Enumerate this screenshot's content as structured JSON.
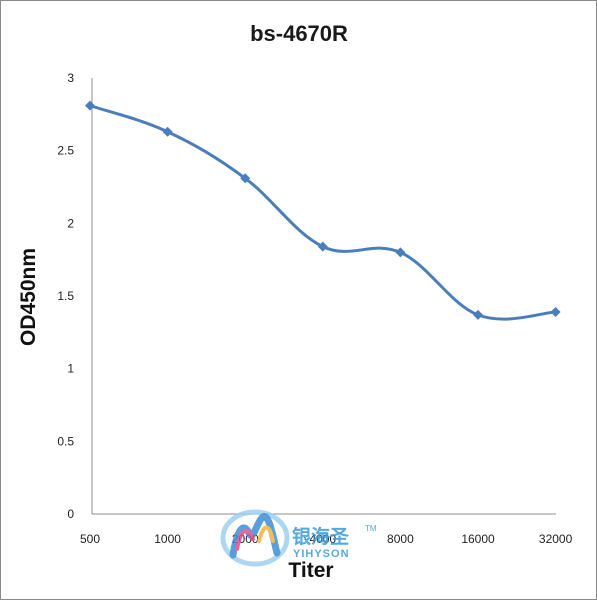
{
  "chart_data": {
    "type": "line",
    "title": "bs-4670R",
    "xlabel": "Titer",
    "ylabel": "OD450nm",
    "categories": [
      "500",
      "1000",
      "2000",
      "4000",
      "8000",
      "16000",
      "32000"
    ],
    "values": [
      2.81,
      2.63,
      2.31,
      1.84,
      1.8,
      1.37,
      1.39
    ],
    "ylim": [
      0,
      3
    ],
    "yticks": [
      "0",
      "0.5",
      "1",
      "1.5",
      "2",
      "2.5",
      "3"
    ],
    "grid": false,
    "legend": "none",
    "line_color": "#4a7ebb"
  },
  "watermark": {
    "cn": "银海圣",
    "en": "YIHYSON",
    "tm": "TM"
  }
}
